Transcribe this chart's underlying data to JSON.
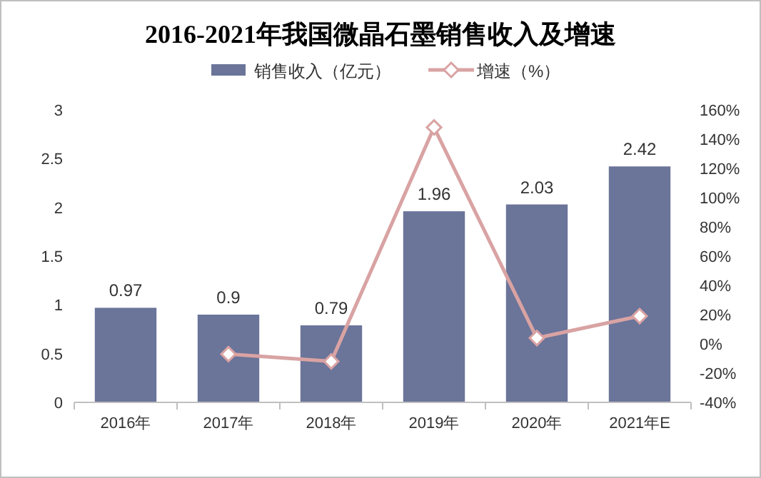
{
  "chart_data": {
    "type": "bar",
    "title": "2016-2021年我国微晶石墨销售收入及增速",
    "categories": [
      "2016年",
      "2017年",
      "2018年",
      "2019年",
      "2020年",
      "2021年E"
    ],
    "series": [
      {
        "name": "销售收入（亿元）",
        "color": "#6b7499",
        "values": [
          0.97,
          0.9,
          0.79,
          1.96,
          2.03,
          2.42
        ],
        "data_labels": true
      },
      {
        "name": "增速（%）",
        "type": "line",
        "axis": "y2",
        "color": "#d9a3a3",
        "marker": "diamond",
        "values": [
          null,
          -7,
          -12,
          148,
          4,
          19
        ]
      }
    ],
    "ylim": [
      0,
      3
    ],
    "yticks": [
      0,
      0.5,
      1,
      1.5,
      2,
      2.5,
      3
    ],
    "y2lim": [
      -40,
      160
    ],
    "y2ticks": [
      {
        "value": -40,
        "label": "-40%"
      },
      {
        "value": -20,
        "label": "-20%"
      },
      {
        "value": 0,
        "label": "0%"
      },
      {
        "value": 20,
        "label": "20%"
      },
      {
        "value": 40,
        "label": "40%"
      },
      {
        "value": 60,
        "label": "60%"
      },
      {
        "value": 80,
        "label": "80%"
      },
      {
        "value": 100,
        "label": "100%"
      },
      {
        "value": 120,
        "label": "120%"
      },
      {
        "value": 140,
        "label": "140%"
      },
      {
        "value": 160,
        "label": "160%"
      }
    ],
    "legend": "top"
  }
}
